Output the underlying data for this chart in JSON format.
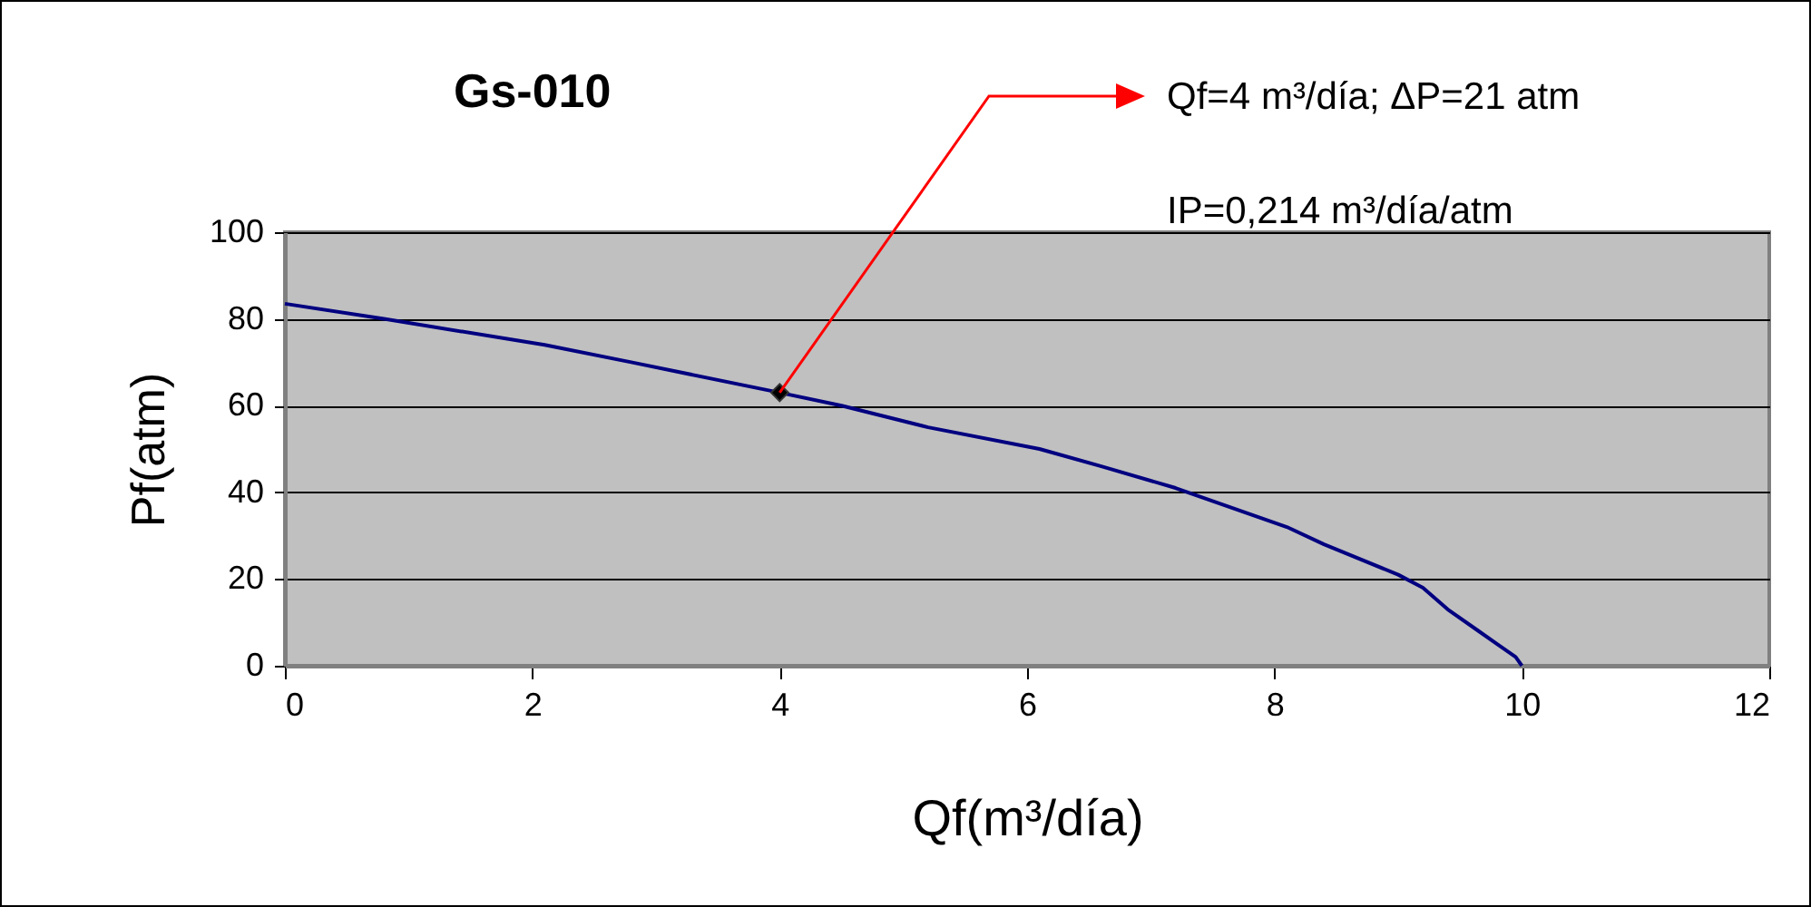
{
  "chart_data": {
    "type": "line",
    "title": "Gs-010",
    "xlabel": "Qf(m³/día)",
    "ylabel": "Pf(atm)",
    "annotations": [
      {
        "text": "Qf=4 m³/día; ΔP=21 atm",
        "x": 4,
        "y": 63
      },
      "IP=0,214 m³/día/atm"
    ],
    "series": [
      {
        "color": "#000080",
        "x": [
          0,
          0.8,
          2.1,
          2.8,
          4,
          4.5,
          5.2,
          6.1,
          6.6,
          7.2,
          8.1,
          8.4,
          9.0,
          9.2,
          9.4,
          9.65,
          9.8,
          9.95,
          10
        ],
        "values": [
          83.5,
          80,
          74,
          70,
          63,
          60,
          55,
          50,
          46,
          41,
          32,
          28,
          21,
          18,
          13,
          8,
          5,
          2,
          0
        ]
      },
      {
        "type": "scatter",
        "color": "#000000",
        "marker": "diamond",
        "x": [
          4
        ],
        "values": [
          63
        ]
      }
    ],
    "xlim": [
      0,
      12
    ],
    "xticks": [
      0,
      2,
      4,
      6,
      8,
      10,
      12
    ],
    "ylim": [
      0,
      100
    ],
    "yticks": [
      0,
      20,
      40,
      60,
      80,
      100
    ],
    "grid": "y"
  }
}
